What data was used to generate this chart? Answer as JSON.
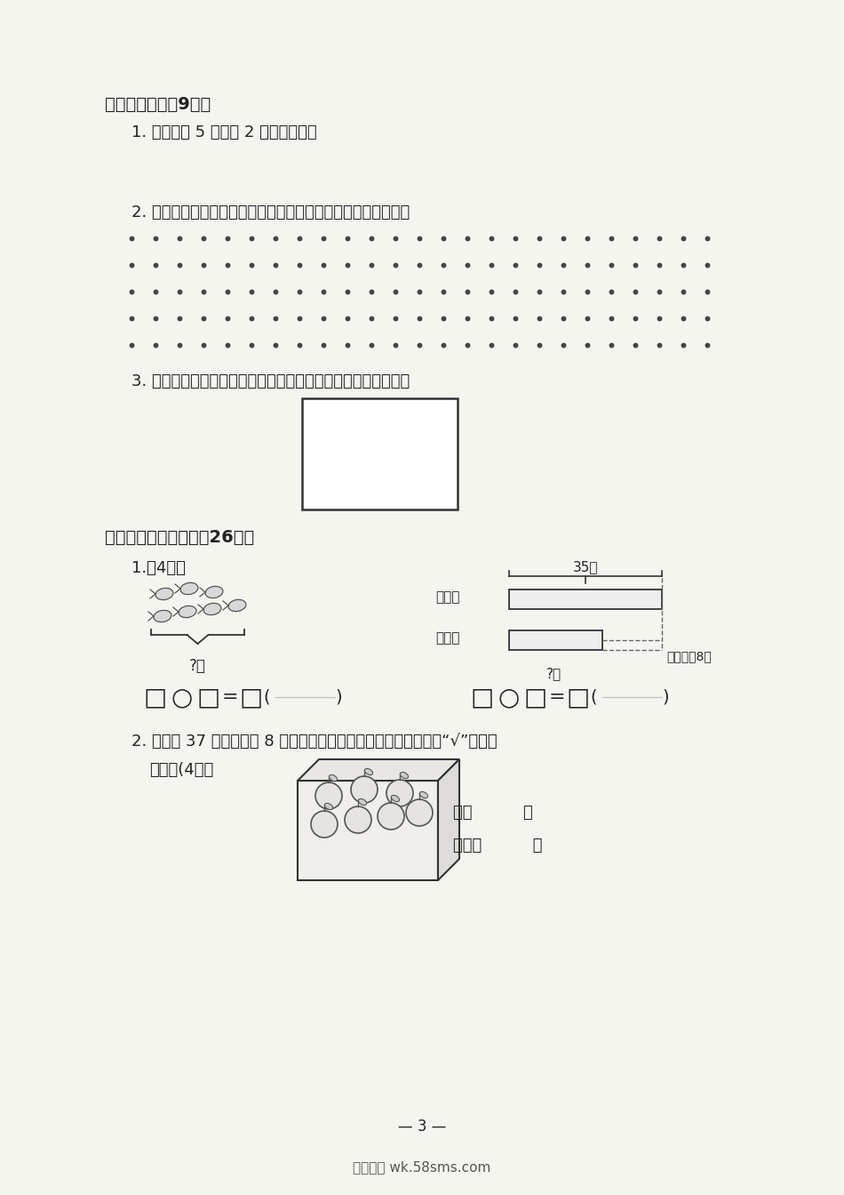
{
  "bg_color": "#f5f5f0",
  "text_color": "#222222",
  "section5_title": "五、操作题。（9分）",
  "q1_text": "1. 画一条比 5 厘米长 2 厘米的线段。",
  "q2_text": "2. 在下面钉子板的左边画一个平行四边形，右边画一个五边形。",
  "q3_text": "3. 在长方形中画一条线段，把它分成一个三角形和一个四边形。",
  "section6_title": "六、解决实际问题。（26分）",
  "p1_text": "1.（4分）",
  "p2_text": "2. 一共有 37 个柿子，用 8 个盒子够装吗？（先列算式计算，再画“√”选择够",
  "p2_text2": "不够）(4分）",
  "gou_text": "够（          ）",
  "bugou_text": "不够（          ）",
  "page_num": "— 3 —",
  "footer": "五八文库 wk.58sms.com",
  "bar_label_35": "35朵",
  "bar_label_yuejihua": "月季花",
  "bar_label_meiguihua": "玫瑞花",
  "bar_label_ques": "?朵",
  "bar_label_less": "比月季花8朵",
  "ques_peng": "?颗",
  "dots_rows": 5,
  "dots_cols": 25
}
